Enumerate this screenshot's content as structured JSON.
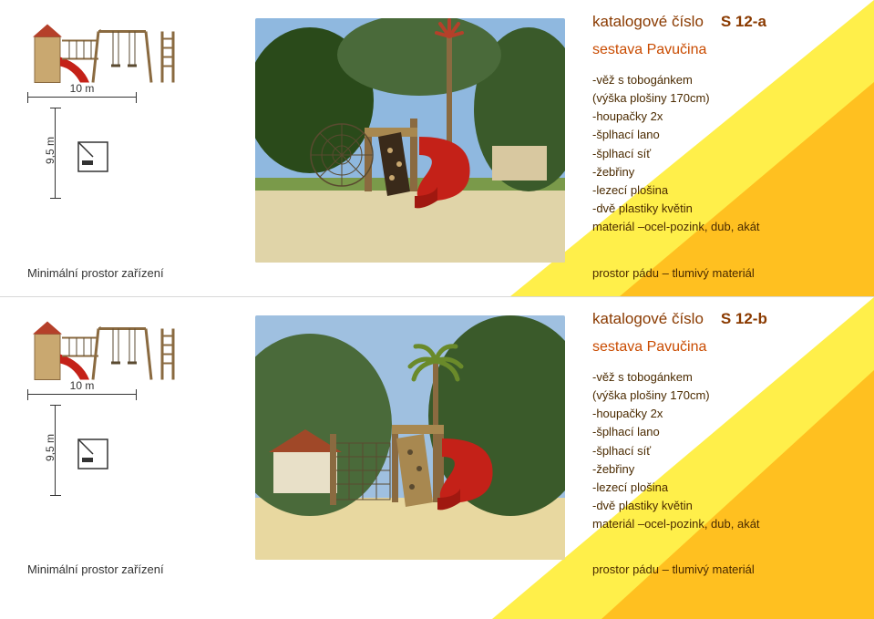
{
  "rows": [
    {
      "catalog_label": "katalogové číslo",
      "code": "S 12-a",
      "subtitle": "sestava Pavučina",
      "specs": [
        "-věž s tobogánkem",
        "(výška plošiny 170cm)",
        "-houpačky 2x",
        "-šplhací lano",
        "-šplhací síť",
        "-žebřiny",
        "-lezecí plošina",
        "-dvě plastiky květin",
        "materiál –ocel-pozink, dub, akát"
      ],
      "footer": "prostor pádu – tlumivý materiál",
      "dim_h": "10 m",
      "dim_v": "9,5 m",
      "caption": "Minimální prostor zařízení"
    },
    {
      "catalog_label": "katalogové číslo",
      "code": "S 12-b",
      "subtitle": "sestava Pavučina",
      "specs": [
        "-věž s tobogánkem",
        "(výška plošiny 170cm)",
        "-houpačky 2x",
        "-šplhací lano",
        "-šplhací síť",
        "-žebřiny",
        "-lezecí plošina",
        "-dvě plastiky květin",
        "materiál –ocel-pozink, dub, akát"
      ],
      "footer": "prostor pádu – tlumivý materiál",
      "dim_h": "10 m",
      "dim_v": "9,5 m",
      "caption": "Minimální prostor zařízení"
    }
  ],
  "colors": {
    "wedge_light": "#ffef4a",
    "wedge_dark": "#ffc020",
    "accent": "#c94b00",
    "title": "#8a3a00",
    "text": "#4a2a00",
    "slide_red": "#c42118",
    "wood": "#c9a870",
    "rope": "#5a4a30",
    "sky": "#8fb8df",
    "trees": "#3a5a2a",
    "sand": "#e0d4a8",
    "grass": "#7a9a4a"
  }
}
